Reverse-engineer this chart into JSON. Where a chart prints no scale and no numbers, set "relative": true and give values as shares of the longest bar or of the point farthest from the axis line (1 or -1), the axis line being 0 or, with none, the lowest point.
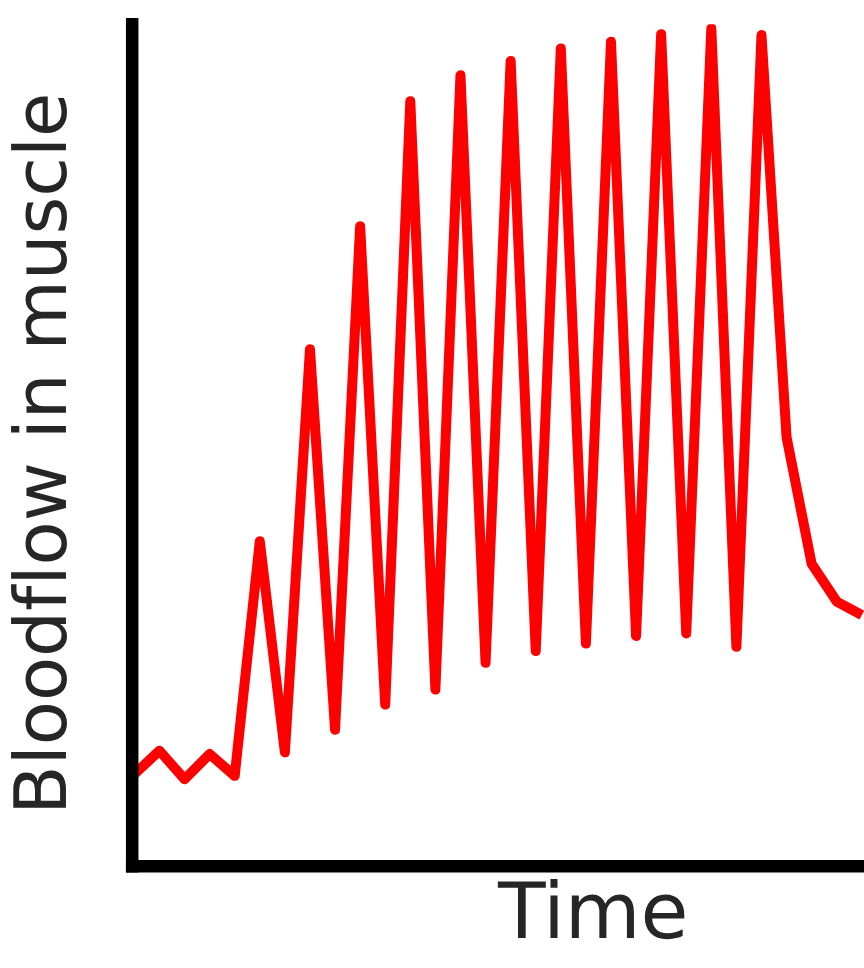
{
  "chart_data": {
    "type": "line",
    "relative": true,
    "xlabel": "Time",
    "ylabel": "Bloodflow in muscle",
    "categories": [
      null,
      null,
      null,
      null,
      null,
      null,
      null,
      null,
      null,
      null,
      null,
      null,
      null,
      null,
      null,
      null,
      null,
      null,
      null,
      null,
      null,
      null,
      null,
      null,
      null,
      null,
      null,
      null,
      null,
      null
    ],
    "series": [
      {
        "color": "#ff0000",
        "values": [
          0.11,
          0.138,
          0.104,
          0.134,
          0.108,
          0.388,
          0.136,
          0.617,
          0.163,
          0.764,
          0.193,
          0.913,
          0.211,
          0.944,
          0.243,
          0.961,
          0.257,
          0.976,
          0.266,
          0.984,
          0.275,
          0.993,
          0.278,
          1,
          0.262,
          0.992,
          0.512,
          0.361,
          0.316,
          0.3
        ]
      }
    ]
  }
}
